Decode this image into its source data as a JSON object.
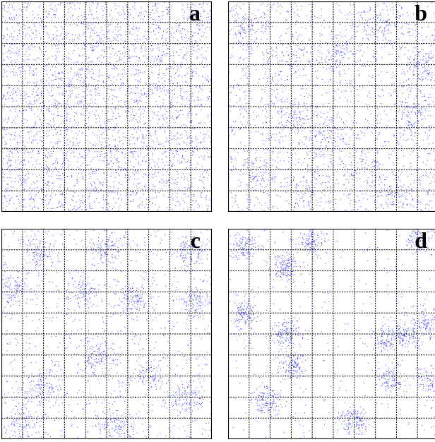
{
  "colors": {
    "points": "#3333ff",
    "grid": "#000000",
    "frame": "#000000",
    "background": "#ffffff"
  },
  "chart_data": [
    {
      "type": "scatter",
      "label": "a",
      "grid": true,
      "grid_divisions": 10,
      "distribution": "uniform",
      "clusters": []
    },
    {
      "type": "scatter",
      "label": "b",
      "grid": true,
      "grid_divisions": 10,
      "distribution": "weakly-clustered",
      "clusters": []
    },
    {
      "type": "scatter",
      "label": "c",
      "grid": true,
      "grid_divisions": 10,
      "distribution": "clustered",
      "clusters": []
    },
    {
      "type": "scatter",
      "label": "d",
      "grid": true,
      "grid_divisions": 10,
      "distribution": "strongly-clustered",
      "clusters": []
    }
  ]
}
